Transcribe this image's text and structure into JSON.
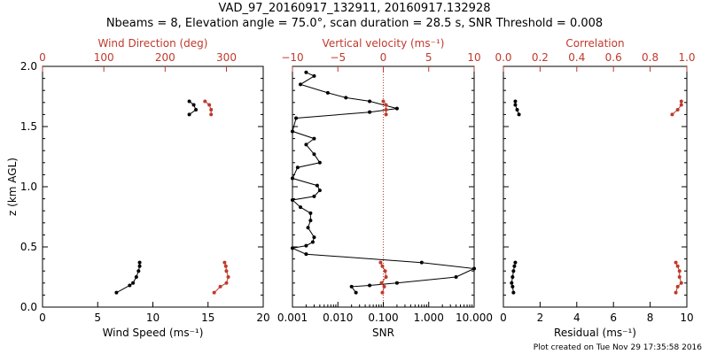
{
  "title_line1": "VAD_97_20160917_132911, 20160917.132928",
  "title_line2": "Nbeams = 8, Elevation angle = 75.0°, scan duration = 28.5 s, SNR Threshold = 0.008",
  "footer": "Plot created on Tue Nov 29 17:35:58 2016",
  "colors": {
    "black": "#000000",
    "red": "#c0392b"
  },
  "chart_data": [
    {
      "type": "line",
      "panel": "left",
      "ylabel": "z (km AGL)",
      "ylim": [
        0.0,
        2.0
      ],
      "y_ticks": [
        "0.0",
        "0.5",
        "1.0",
        "1.5",
        "2.0"
      ],
      "xlabel_bottom": "Wind Speed (ms⁻¹)",
      "xlim_bottom": [
        0,
        20
      ],
      "x_ticks_bottom": [
        "0",
        "5",
        "10",
        "15",
        "20"
      ],
      "xlabel_top": "Wind Direction (deg)",
      "xlim_top": [
        0,
        360
      ],
      "x_ticks_top": [
        "0",
        "100",
        "200",
        "300"
      ],
      "series": [
        {
          "axis": "bottom",
          "color": "black",
          "segments": [
            [
              [
                13.3,
                1.71
              ],
              [
                13.7,
                1.68
              ],
              [
                13.9,
                1.64
              ],
              [
                13.3,
                1.6
              ]
            ],
            [
              [
                8.8,
                0.37
              ],
              [
                8.8,
                0.34
              ],
              [
                8.7,
                0.3
              ],
              [
                8.5,
                0.25
              ],
              [
                8.2,
                0.2
              ],
              [
                7.9,
                0.18
              ],
              [
                6.7,
                0.12
              ]
            ]
          ]
        },
        {
          "axis": "top",
          "color": "red",
          "segments": [
            [
              [
                265,
                1.71
              ],
              [
                272,
                1.68
              ],
              [
                275,
                1.64
              ],
              [
                275,
                1.6
              ]
            ],
            [
              [
                297,
                0.37
              ],
              [
                299,
                0.34
              ],
              [
                300,
                0.3
              ],
              [
                303,
                0.25
              ],
              [
                300,
                0.2
              ],
              [
                290,
                0.17
              ],
              [
                280,
                0.12
              ]
            ]
          ]
        }
      ]
    },
    {
      "type": "line",
      "panel": "middle",
      "xlabel_bottom": "SNR",
      "xscale_bottom": "log",
      "xlim_bottom": [
        0.001,
        10
      ],
      "x_ticks_bottom": [
        "0.001",
        "0.010",
        "0.100",
        "1.000",
        "10.000"
      ],
      "xlabel_top": "Vertical velocity (ms⁻¹)",
      "xlim_top": [
        -10,
        10
      ],
      "x_ticks_top": [
        "−10",
        "−5",
        "0",
        "5",
        "10"
      ],
      "reference_line_top_x": 0,
      "series": [
        {
          "axis": "bottom",
          "color": "black",
          "segments": [
            [
              [
                0.002,
                1.95
              ],
              [
                0.003,
                1.92
              ],
              [
                0.0015,
                1.85
              ],
              [
                0.006,
                1.78
              ],
              [
                0.015,
                1.74
              ],
              [
                0.05,
                1.71
              ],
              [
                0.2,
                1.65
              ],
              [
                0.05,
                1.62
              ],
              [
                0.0012,
                1.57
              ],
              [
                0.001,
                1.46
              ],
              [
                0.003,
                1.4
              ],
              [
                0.002,
                1.35
              ],
              [
                0.003,
                1.27
              ],
              [
                0.004,
                1.2
              ],
              [
                0.0013,
                1.16
              ],
              [
                0.001,
                1.07
              ],
              [
                0.0035,
                1.01
              ],
              [
                0.004,
                0.97
              ],
              [
                0.003,
                0.92
              ],
              [
                0.001,
                0.89
              ],
              [
                0.0015,
                0.83
              ],
              [
                0.0025,
                0.78
              ],
              [
                0.0025,
                0.72
              ],
              [
                0.0022,
                0.66
              ],
              [
                0.003,
                0.58
              ],
              [
                0.0028,
                0.54
              ],
              [
                0.002,
                0.51
              ],
              [
                0.001,
                0.49
              ],
              [
                0.002,
                0.44
              ],
              [
                0.7,
                0.37
              ],
              [
                10,
                0.32
              ],
              [
                4,
                0.25
              ],
              [
                0.2,
                0.2
              ],
              [
                0.05,
                0.18
              ],
              [
                0.02,
                0.17
              ],
              [
                0.025,
                0.12
              ]
            ]
          ]
        },
        {
          "axis": "top",
          "color": "red",
          "segments": [
            [
              [
                0,
                1.71
              ],
              [
                0.3,
                1.68
              ],
              [
                0.3,
                1.64
              ],
              [
                0.3,
                1.6
              ]
            ],
            [
              [
                -0.3,
                0.37
              ],
              [
                -0.1,
                0.34
              ],
              [
                0.2,
                0.3
              ],
              [
                0.3,
                0.25
              ],
              [
                -0.2,
                0.2
              ],
              [
                0.1,
                0.17
              ],
              [
                -0.1,
                0.12
              ]
            ]
          ]
        }
      ]
    },
    {
      "type": "line",
      "panel": "right",
      "xlabel_bottom": "Residual (ms⁻¹)",
      "xlim_bottom": [
        0,
        10
      ],
      "x_ticks_bottom": [
        "0",
        "2",
        "4",
        "6",
        "8",
        "10"
      ],
      "xlabel_top": "Correlation",
      "xlim_top": [
        0.0,
        1.0
      ],
      "x_ticks_top": [
        "0.0",
        "0.2",
        "0.4",
        "0.6",
        "0.8",
        "1.0"
      ],
      "series": [
        {
          "axis": "bottom",
          "color": "black",
          "segments": [
            [
              [
                0.65,
                1.71
              ],
              [
                0.65,
                1.68
              ],
              [
                0.75,
                1.64
              ],
              [
                0.85,
                1.6
              ]
            ],
            [
              [
                0.65,
                0.37
              ],
              [
                0.6,
                0.34
              ],
              [
                0.55,
                0.3
              ],
              [
                0.5,
                0.25
              ],
              [
                0.45,
                0.2
              ],
              [
                0.5,
                0.17
              ],
              [
                0.55,
                0.12
              ]
            ]
          ]
        },
        {
          "axis": "top",
          "color": "red",
          "segments": [
            [
              [
                0.97,
                1.71
              ],
              [
                0.97,
                1.68
              ],
              [
                0.95,
                1.64
              ],
              [
                0.92,
                1.6
              ]
            ],
            [
              [
                0.94,
                0.37
              ],
              [
                0.95,
                0.34
              ],
              [
                0.96,
                0.3
              ],
              [
                0.96,
                0.25
              ],
              [
                0.97,
                0.2
              ],
              [
                0.95,
                0.17
              ],
              [
                0.94,
                0.12
              ]
            ]
          ]
        }
      ]
    }
  ]
}
